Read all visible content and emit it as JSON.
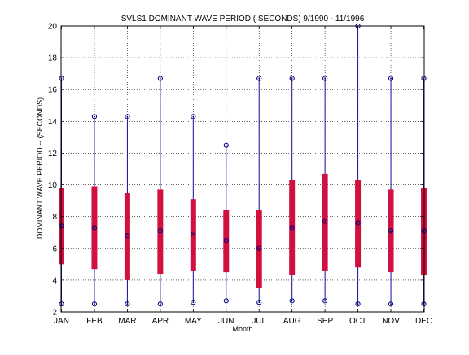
{
  "chart_data": {
    "type": "box",
    "title": "SVLS1  DOMINANT WAVE PERIOD ( SECONDS) 9/1990 - 11/1996",
    "xlabel": "Month",
    "ylabel": "DOMINANT WAVE PERIOD -- (SECONDS)",
    "ylim": [
      2,
      20
    ],
    "yticks": [
      2,
      4,
      6,
      8,
      10,
      12,
      14,
      16,
      18,
      20
    ],
    "grid": true,
    "categories": [
      "JAN",
      "FEB",
      "MAR",
      "APR",
      "MAY",
      "JUN",
      "JUL",
      "AUG",
      "SEP",
      "OCT",
      "NOV",
      "DEC"
    ],
    "min": [
      2.5,
      2.5,
      2.5,
      2.5,
      2.6,
      2.7,
      2.6,
      2.7,
      2.7,
      2.5,
      2.5,
      2.5
    ],
    "max": [
      16.7,
      14.3,
      14.3,
      16.7,
      14.3,
      12.5,
      16.7,
      16.7,
      16.7,
      20.0,
      16.7,
      16.7
    ],
    "q_low": [
      5.0,
      4.7,
      4.0,
      4.4,
      4.6,
      4.5,
      3.5,
      4.3,
      4.6,
      4.8,
      4.5,
      4.3
    ],
    "q_high": [
      9.8,
      9.9,
      9.5,
      9.7,
      9.1,
      8.4,
      8.4,
      10.3,
      10.7,
      10.3,
      9.7,
      9.8
    ],
    "mean": [
      7.4,
      7.3,
      6.8,
      7.1,
      6.9,
      6.5,
      6.0,
      7.3,
      7.7,
      7.6,
      7.1,
      7.1
    ],
    "colors": {
      "whisker": "#1010a0",
      "box": "#d21040",
      "marker": "#00007a",
      "grid": "#000000"
    }
  }
}
